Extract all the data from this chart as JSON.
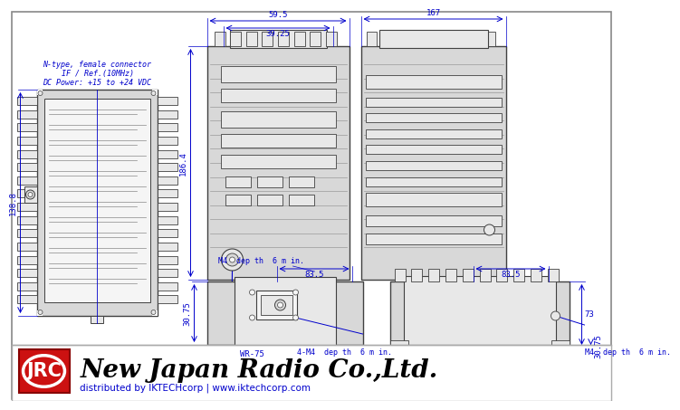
{
  "bg_color": "#ffffff",
  "border_color": "#aaaaaa",
  "line_color": "#404040",
  "dim_color": "#0000cc",
  "fill_body": "#d8d8d8",
  "fill_light": "#e8e8e8",
  "fill_dark": "#b0b0b0",
  "fill_white": "#f5f5f5",
  "title_text": "New Japan Radio Co.,Ltd.",
  "subtitle_text": "distributed by IKTECHcorp | www.iktechcorp.com",
  "jrc_bg": "#cc1111",
  "jrc_text": "JRC",
  "connector_text1": "N-type, female connector",
  "connector_text2": "IF / Ref.(10MHz)",
  "connector_text3": "DC Power: +15 to +24 VDC",
  "dim_59_5": "59.5",
  "dim_39_25": "39.25",
  "dim_138_8": "138.8",
  "dim_186_4": "186.4",
  "dim_83_5_left": "83.5",
  "dim_30_75_left": "30.75",
  "dim_m4_left": "M4  dep th  6 m in.",
  "dim_wr75": "WR-75",
  "dim_4m4": "4-M4  dep th  6 m in.",
  "dim_167": "167",
  "dim_83_5_right": "83.5",
  "dim_73": "73",
  "dim_30_75_right": "30.75",
  "dim_m4_right": "M4  dep th  6 m in."
}
